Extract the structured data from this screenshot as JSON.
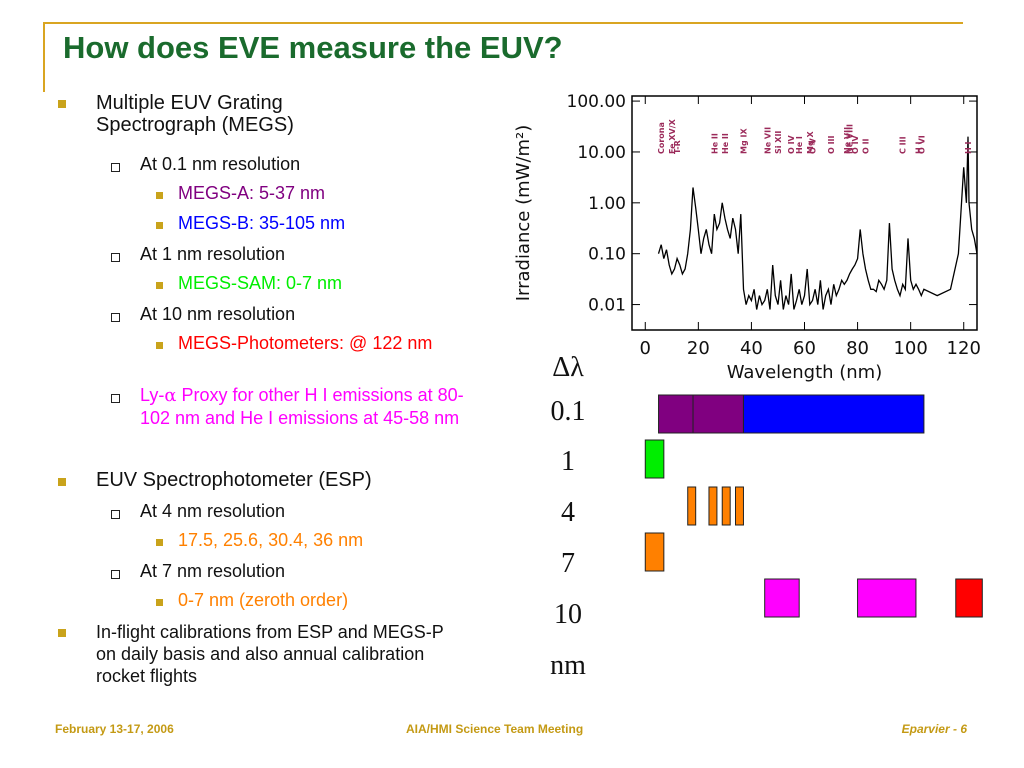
{
  "title": "How does EVE measure the EUV?",
  "bullets": {
    "megs": "Multiple EUV Grating Spectrograph (MEGS)",
    "res01": "At 0.1 nm resolution",
    "megsA": "MEGS-A: 5-37 nm",
    "megsB": "MEGS-B: 35-105 nm",
    "res1": "At 1 nm resolution",
    "megsSAM": "MEGS-SAM: 0-7 nm",
    "res10": "At 10 nm resolution",
    "megsP": "MEGS-Photometers: @ 122 nm",
    "lya_prefix": "Ly-",
    "lya_alpha": "α",
    "lya_rest": " Proxy for other H I emissions at 80-102 nm and He I emissions at 45-58 nm",
    "esp": "EUV Spectrophotometer (ESP)",
    "res4": "At 4 nm resolution",
    "esp_lines": "17.5, 25.6, 30.4, 36 nm",
    "res7": "At 7 nm resolution",
    "zeroth": "0-7 nm (zeroth order)",
    "calib": "In-flight calibrations from ESP and MEGS-P on daily basis and also annual calibration rocket flights"
  },
  "colors": {
    "title": "#1a6b2d",
    "megsA": "#800080",
    "megsB": "#0000ff",
    "megsSAM": "#00ee00",
    "megsP": "#ff0000",
    "lya": "#ff00ff",
    "esp": "#ff8000",
    "bullet_marker": "#c9a31b"
  },
  "resolution_labels": {
    "header": "Δλ",
    "r1": "0.1",
    "r2": "1",
    "r3": "4",
    "r4": "7",
    "r5": "10",
    "unit": "nm"
  },
  "chart_data": {
    "type": "line",
    "xlabel": "Wavelength (nm)",
    "ylabel": "Irradiance (mW/m²)",
    "xlim": [
      -5,
      125
    ],
    "ylim_log10": [
      -2.5,
      2.1
    ],
    "y_scale": "log",
    "x_ticks": [
      "0",
      "20",
      "40",
      "60",
      "80",
      "100",
      "120"
    ],
    "x_tick_values": [
      0,
      20,
      40,
      60,
      80,
      100,
      120
    ],
    "y_ticks": [
      "100.00",
      "10.00",
      "1.00",
      "0.10",
      "0.01"
    ],
    "y_tick_values": [
      100,
      10,
      1,
      0.1,
      0.01
    ],
    "series": [
      {
        "x": [
          5,
          6,
          7,
          8,
          9,
          10,
          11,
          12,
          13,
          14,
          15,
          16,
          17,
          18,
          19,
          20,
          21,
          22,
          23,
          24,
          25,
          26,
          27,
          28,
          29,
          30,
          31,
          32,
          33,
          34,
          35,
          36,
          37,
          38,
          39,
          40,
          41,
          42,
          43,
          44,
          45,
          46,
          47,
          48,
          49,
          50,
          51,
          52,
          53,
          54,
          55,
          56,
          57,
          58,
          59,
          60,
          61,
          62,
          63,
          64,
          65,
          66,
          67,
          68,
          69,
          70,
          71,
          72,
          73,
          74,
          75,
          76,
          77,
          78,
          79,
          80,
          81,
          82,
          83,
          84,
          85,
          86,
          87,
          88,
          89,
          90,
          91,
          92,
          93,
          94,
          95,
          96,
          97,
          98,
          99,
          100,
          101,
          102,
          103,
          104,
          105,
          110,
          115,
          118,
          120,
          121,
          121.6,
          122,
          123,
          124,
          125
        ],
        "y": [
          0.1,
          0.15,
          0.08,
          0.12,
          0.06,
          0.04,
          0.05,
          0.08,
          0.06,
          0.04,
          0.05,
          0.1,
          0.3,
          2.0,
          0.8,
          0.3,
          0.1,
          0.2,
          0.3,
          0.15,
          0.1,
          0.6,
          0.3,
          0.4,
          1.0,
          0.5,
          0.3,
          0.2,
          0.5,
          0.3,
          0.1,
          0.6,
          0.02,
          0.01,
          0.015,
          0.012,
          0.02,
          0.008,
          0.015,
          0.01,
          0.012,
          0.02,
          0.008,
          0.06,
          0.015,
          0.01,
          0.03,
          0.008,
          0.015,
          0.01,
          0.04,
          0.008,
          0.012,
          0.02,
          0.01,
          0.015,
          0.05,
          0.01,
          0.012,
          0.02,
          0.01,
          0.03,
          0.008,
          0.015,
          0.02,
          0.01,
          0.025,
          0.015,
          0.02,
          0.03,
          0.025,
          0.03,
          0.04,
          0.05,
          0.06,
          0.08,
          0.3,
          0.1,
          0.05,
          0.03,
          0.02,
          0.02,
          0.018,
          0.03,
          0.025,
          0.02,
          0.03,
          0.4,
          0.05,
          0.03,
          0.02,
          0.015,
          0.025,
          0.02,
          0.2,
          0.03,
          0.02,
          0.025,
          0.02,
          0.015,
          0.02,
          0.015,
          0.02,
          0.1,
          5.0,
          1.0,
          20.0,
          1.0,
          0.3,
          0.2,
          0.1
        ]
      }
    ],
    "line_annotations": [
      {
        "label": "Corona",
        "x": 6
      },
      {
        "label": "Fe XV/X",
        "x": 10
      },
      {
        "label": "T-R",
        "x": 12
      },
      {
        "label": "He II",
        "x": 26
      },
      {
        "label": "He II",
        "x": 30
      },
      {
        "label": "Mg IX",
        "x": 37
      },
      {
        "label": "Ne VII",
        "x": 46
      },
      {
        "label": "Si XII",
        "x": 50
      },
      {
        "label": "O IV",
        "x": 55
      },
      {
        "label": "He I",
        "x": 58
      },
      {
        "label": "Mg X",
        "x": 62
      },
      {
        "label": "O V",
        "x": 63
      },
      {
        "label": "O III",
        "x": 70
      },
      {
        "label": "Ne VII",
        "x": 76
      },
      {
        "label": "Ne VIII",
        "x": 77
      },
      {
        "label": "O IV",
        "x": 79
      },
      {
        "label": "O II",
        "x": 83
      },
      {
        "label": "C III",
        "x": 97
      },
      {
        "label": "H I",
        "x": 103
      },
      {
        "label": "O VI",
        "x": 104
      },
      {
        "label": "H I",
        "x": 121.6
      }
    ]
  },
  "band_data": [
    {
      "row": 0,
      "start": 5,
      "end": 18,
      "color": "#800080"
    },
    {
      "row": 0,
      "start": 18,
      "end": 37,
      "color": "#800080"
    },
    {
      "row": 0,
      "start": 37,
      "end": 105,
      "color": "#0000ff"
    },
    {
      "row": 1,
      "start": 0,
      "end": 7,
      "color": "#00ee00"
    },
    {
      "row": 2,
      "start": 16,
      "end": 19,
      "color": "#ff8000"
    },
    {
      "row": 2,
      "start": 24,
      "end": 27,
      "color": "#ff8000"
    },
    {
      "row": 2,
      "start": 29,
      "end": 32,
      "color": "#ff8000"
    },
    {
      "row": 2,
      "start": 34,
      "end": 37,
      "color": "#ff8000"
    },
    {
      "row": 3,
      "start": 0,
      "end": 7,
      "color": "#ff8000"
    },
    {
      "row": 4,
      "start": 45,
      "end": 58,
      "color": "#ff00ff"
    },
    {
      "row": 4,
      "start": 80,
      "end": 102,
      "color": "#ff00ff"
    },
    {
      "row": 4,
      "start": 117,
      "end": 127,
      "color": "#ff0000"
    }
  ],
  "footer": {
    "date": "February  13-17, 2006",
    "meeting": "AIA/HMI Science Team Meeting",
    "page": "Eparvier - 6"
  }
}
